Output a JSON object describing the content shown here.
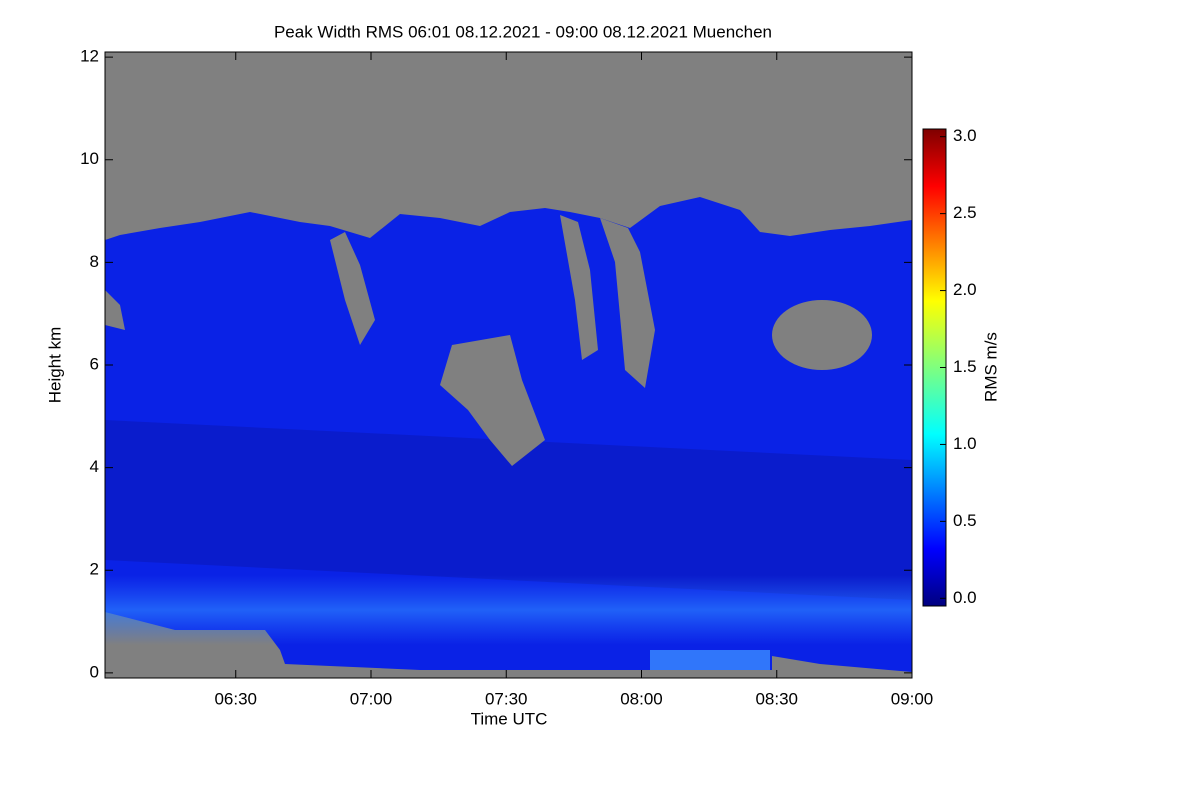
{
  "chart_data": {
    "type": "heatmap",
    "title": "Peak Width RMS   06:01 08.12.2021 - 09:00 08.12.2021 Muenchen",
    "xlabel": "Time UTC",
    "ylabel": "Height km",
    "xlim": [
      "06:01",
      "09:00"
    ],
    "xticks": [
      "06:30",
      "07:00",
      "07:30",
      "08:00",
      "08:30",
      "09:00"
    ],
    "ylim": [
      -0.1,
      12.1
    ],
    "yticks": [
      0,
      2,
      4,
      6,
      8,
      10,
      12
    ],
    "colorbar": {
      "label": "RMS m/s",
      "colormap": "jet",
      "zlim": [
        -0.05,
        3.05
      ],
      "ticks": [
        {
          "value": 0,
          "label": "0.0"
        },
        {
          "value": 0.5,
          "label": "0.5"
        },
        {
          "value": 1,
          "label": "1.0"
        },
        {
          "value": 1.5,
          "label": "1.5"
        },
        {
          "value": 2,
          "label": "2.0"
        },
        {
          "value": 2.5,
          "label": "2.5"
        },
        {
          "value": 3,
          "label": "3.0"
        }
      ]
    },
    "missing_color": "#808080"
  }
}
